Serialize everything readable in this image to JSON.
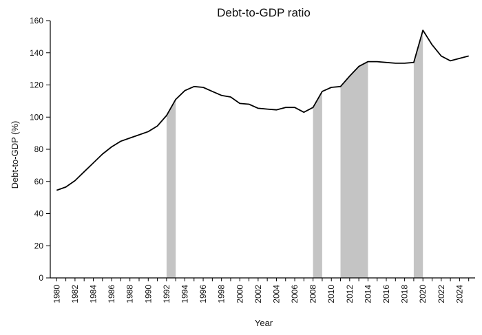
{
  "chart_data": {
    "type": "line",
    "title": "Debt-to-GDP ratio",
    "xlabel": "Year",
    "ylabel": "Debt-to-GDP (%)",
    "xlim": [
      1979.3,
      2025.7
    ],
    "ylim": [
      0,
      160
    ],
    "y_ticks": [
      0,
      20,
      40,
      60,
      80,
      100,
      120,
      140,
      160
    ],
    "x_tick_labels": [
      "1980",
      "1982",
      "1984",
      "1986",
      "1988",
      "1990",
      "1992",
      "1994",
      "1996",
      "1998",
      "2000",
      "2002",
      "2004",
      "2006",
      "2008",
      "2010",
      "2012",
      "2014",
      "2016",
      "2018",
      "2020",
      "2022",
      "2024"
    ],
    "grid": false,
    "line_color": "#000000",
    "shade_color": "#c4c4c4",
    "shaded_periods": [
      {
        "start": 1992,
        "end": 1993
      },
      {
        "start": 2008,
        "end": 2009
      },
      {
        "start": 2011,
        "end": 2014
      },
      {
        "start": 2019,
        "end": 2020
      }
    ],
    "series": [
      {
        "x": [
          1980,
          1981,
          1982,
          1983,
          1984,
          1985,
          1986,
          1987,
          1988,
          1989,
          1990,
          1991,
          1992,
          1993,
          1994,
          1995,
          1996,
          1997,
          1998,
          1999,
          2000,
          2001,
          2002,
          2003,
          2004,
          2005,
          2006,
          2007,
          2008,
          2009,
          2010,
          2011,
          2012,
          2013,
          2014,
          2015,
          2016,
          2017,
          2018,
          2019,
          2020,
          2021,
          2022,
          2023,
          2024,
          2025
        ],
        "values": [
          54.5,
          56.5,
          60.5,
          66,
          71.5,
          77,
          81.5,
          85,
          87,
          89,
          91,
          94.5,
          101,
          111,
          116.5,
          119,
          118.5,
          116,
          113.5,
          112.5,
          108.5,
          108,
          105.5,
          105,
          104.5,
          106,
          106,
          103,
          106,
          116,
          118.5,
          119,
          125.5,
          131.5,
          134.5,
          134.5,
          134,
          133.5,
          133.5,
          134,
          154,
          145,
          138,
          135,
          136.5,
          138
        ]
      }
    ]
  }
}
